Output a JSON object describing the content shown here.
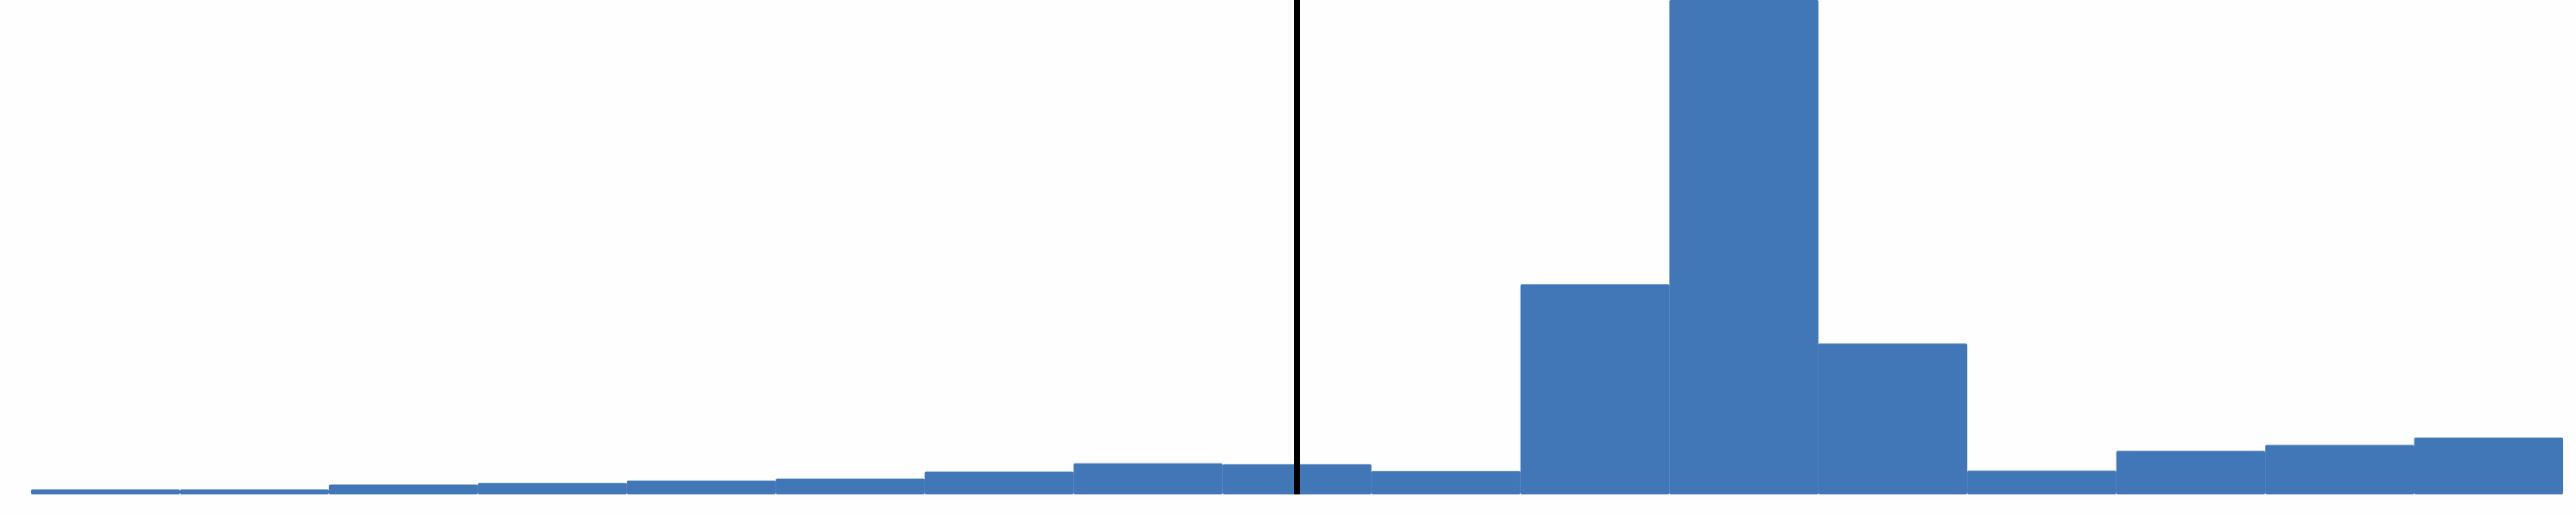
{
  "chart_data": {
    "type": "histogram",
    "title": "",
    "xlabel": "",
    "ylabel": "",
    "grid": false,
    "legend": "none",
    "bar_color": "#4176b7",
    "marker_color": "#000000",
    "bins": [
      {
        "x0": 0,
        "x1": 1,
        "value": 0.01
      },
      {
        "x0": 1,
        "x1": 2,
        "value": 0.01
      },
      {
        "x0": 2,
        "x1": 3,
        "value": 0.02
      },
      {
        "x0": 3,
        "x1": 4,
        "value": 0.023
      },
      {
        "x0": 4,
        "x1": 5,
        "value": 0.028
      },
      {
        "x0": 5,
        "x1": 6,
        "value": 0.032
      },
      {
        "x0": 6,
        "x1": 7,
        "value": 0.046
      },
      {
        "x0": 7,
        "x1": 8,
        "value": 0.063
      },
      {
        "x0": 8,
        "x1": 9,
        "value": 0.061
      },
      {
        "x0": 9,
        "x1": 10,
        "value": 0.047
      },
      {
        "x0": 10,
        "x1": 11,
        "value": 0.425
      },
      {
        "x0": 11,
        "x1": 12,
        "value": 1.0
      },
      {
        "x0": 12,
        "x1": 13,
        "value": 0.305
      },
      {
        "x0": 13,
        "x1": 14,
        "value": 0.048
      },
      {
        "x0": 14,
        "x1": 15,
        "value": 0.088
      },
      {
        "x0": 15,
        "x1": 16,
        "value": 0.1
      },
      {
        "x0": 16,
        "x1": 17,
        "value": 0.115
      }
    ],
    "xlim": [
      0,
      17
    ],
    "ylim": [
      0,
      1.0
    ],
    "vertical_line_x": 8.5
  }
}
